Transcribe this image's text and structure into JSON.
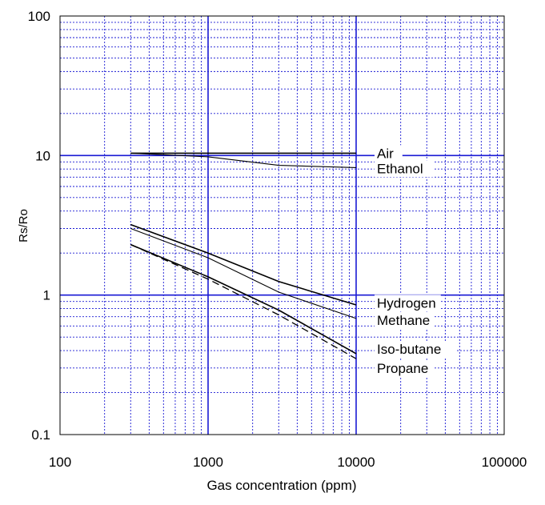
{
  "chart_data": {
    "type": "line",
    "title": "",
    "xlabel": "Gas concentration (ppm)",
    "ylabel": "Rs/Ro",
    "xscale": "log",
    "yscale": "log",
    "xlim": [
      100,
      100000
    ],
    "ylim": [
      0.1,
      100
    ],
    "xticks": [
      "100",
      "1000",
      "10000",
      "100000"
    ],
    "yticks": [
      "0.1",
      "1",
      "10",
      "100"
    ],
    "grid": true,
    "grid_color": "#1a1ad4",
    "line_color": "#000000",
    "legend": "inline labels at right end of lines",
    "series": [
      {
        "name": "Air",
        "x": [
          300,
          10000
        ],
        "y": [
          10.4,
          10.4
        ],
        "label_y": 10.4,
        "weight": "bold"
      },
      {
        "name": "Ethanol",
        "x": [
          300,
          1000,
          3000,
          10000
        ],
        "y": [
          10.4,
          9.8,
          8.5,
          8.2
        ],
        "label_y": 8.1,
        "weight": "normal"
      },
      {
        "name": "Hydrogen",
        "x": [
          300,
          1000,
          3000,
          10000
        ],
        "y": [
          3.2,
          2.0,
          1.25,
          0.85
        ],
        "label_y": 0.88,
        "weight": "bold"
      },
      {
        "name": "Methane",
        "x": [
          300,
          1000,
          3000,
          10000
        ],
        "y": [
          3.0,
          1.85,
          1.05,
          0.68
        ],
        "label_y": 0.66,
        "weight": "normal"
      },
      {
        "name": "Iso-butane",
        "x": [
          300,
          1000,
          3000,
          10000
        ],
        "y": [
          2.3,
          1.35,
          0.78,
          0.38
        ],
        "label_y": 0.41,
        "weight": "bold"
      },
      {
        "name": "Propane",
        "x": [
          300,
          1000,
          3000,
          10000
        ],
        "y": [
          2.3,
          1.3,
          0.72,
          0.35
        ],
        "label_y": 0.3,
        "weight": "dashed"
      }
    ]
  }
}
